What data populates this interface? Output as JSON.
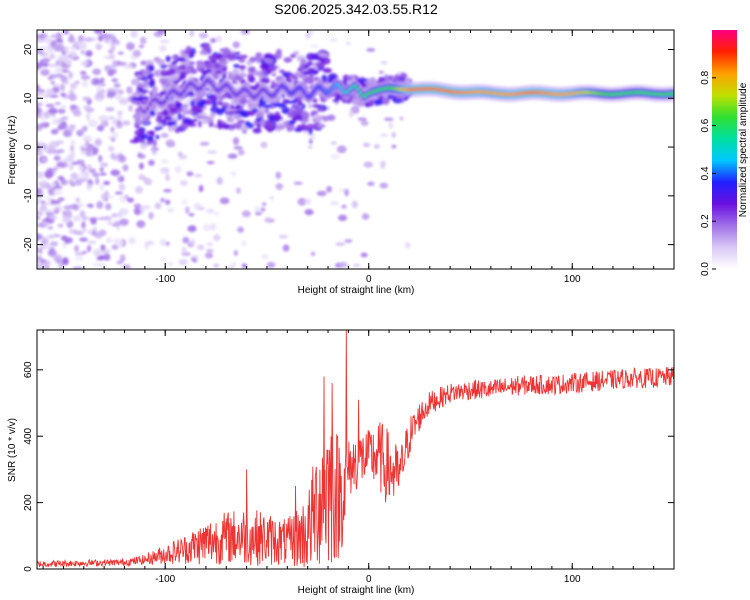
{
  "title": "S206.2025.342.03.55.R12",
  "chart_data": [
    {
      "type": "heatmap",
      "name": "spectrogram",
      "xlabel": "Height of straight line (km)",
      "ylabel": "Frequency (Hz)",
      "xlim": [
        -163,
        150
      ],
      "ylim": [
        -25,
        24
      ],
      "xticks": [
        -100,
        0,
        100
      ],
      "yticks": [
        -20,
        -10,
        0,
        10,
        20
      ],
      "colorbar": {
        "label": "Normalized spectral amplitude",
        "range": [
          0.0,
          1.0
        ],
        "ticks": [
          0.0,
          0.2,
          0.4,
          0.6,
          0.8
        ],
        "colormap": [
          "#ffffff",
          "#d9c8f5",
          "#a070e8",
          "#6a10e0",
          "#2020ff",
          "#00c8ff",
          "#00e0a0",
          "#30e030",
          "#c0e000",
          "#ffa000",
          "#ff2000",
          "#ff0080"
        ]
      },
      "ridge": {
        "description": "dominant frequency band vs height",
        "x": [
          -110,
          -100,
          -90,
          -80,
          -70,
          -60,
          -50,
          -40,
          -30,
          -20,
          -10,
          0,
          10,
          20,
          40,
          60,
          80,
          100,
          120,
          140,
          150
        ],
        "freq": [
          8,
          10,
          12,
          13,
          12,
          11,
          11,
          12,
          11,
          12,
          12,
          11,
          12,
          12,
          11.5,
          11,
          11,
          11,
          11,
          11,
          11
        ],
        "peak_amplitude": [
          0.25,
          0.3,
          0.3,
          0.3,
          0.3,
          0.3,
          0.3,
          0.35,
          0.35,
          0.4,
          0.5,
          0.6,
          0.6,
          0.85,
          0.85,
          0.8,
          0.85,
          0.8,
          0.6,
          0.6,
          0.6
        ]
      }
    },
    {
      "type": "line",
      "name": "snr",
      "xlabel": "Height of straight line (km)",
      "ylabel": "SNR (10 * v/v)",
      "xlim": [
        -163,
        150
      ],
      "ylim": [
        0,
        720
      ],
      "xticks": [
        -100,
        0,
        100
      ],
      "yticks": [
        0,
        200,
        400,
        600
      ],
      "color": "#ee3333",
      "envelope": {
        "x": [
          -163,
          -140,
          -120,
          -110,
          -100,
          -90,
          -80,
          -70,
          -60,
          -50,
          -40,
          -30,
          -25,
          -20,
          -15,
          -12,
          -10,
          -5,
          0,
          5,
          10,
          15,
          20,
          25,
          30,
          40,
          50,
          60,
          70,
          80,
          90,
          100,
          110,
          120,
          130,
          140,
          150
        ],
        "mean": [
          15,
          18,
          20,
          28,
          45,
          60,
          80,
          95,
          100,
          90,
          80,
          110,
          200,
          250,
          220,
          240,
          300,
          330,
          340,
          340,
          300,
          280,
          400,
          460,
          500,
          530,
          540,
          540,
          550,
          555,
          555,
          560,
          565,
          570,
          575,
          575,
          580
        ],
        "amp": [
          10,
          10,
          10,
          15,
          30,
          45,
          70,
          80,
          90,
          80,
          70,
          120,
          200,
          250,
          200,
          150,
          90,
          90,
          80,
          110,
          120,
          80,
          60,
          45,
          35,
          30,
          30,
          30,
          30,
          30,
          30,
          30,
          30,
          30,
          30,
          30,
          30
        ]
      },
      "spikes": [
        {
          "x": -60,
          "y": 300
        },
        {
          "x": -36,
          "y": 250
        },
        {
          "x": -22,
          "y": 580
        },
        {
          "x": -18,
          "y": 560
        },
        {
          "x": -11,
          "y": 720
        },
        {
          "x": -5,
          "y": 510
        }
      ]
    }
  ]
}
